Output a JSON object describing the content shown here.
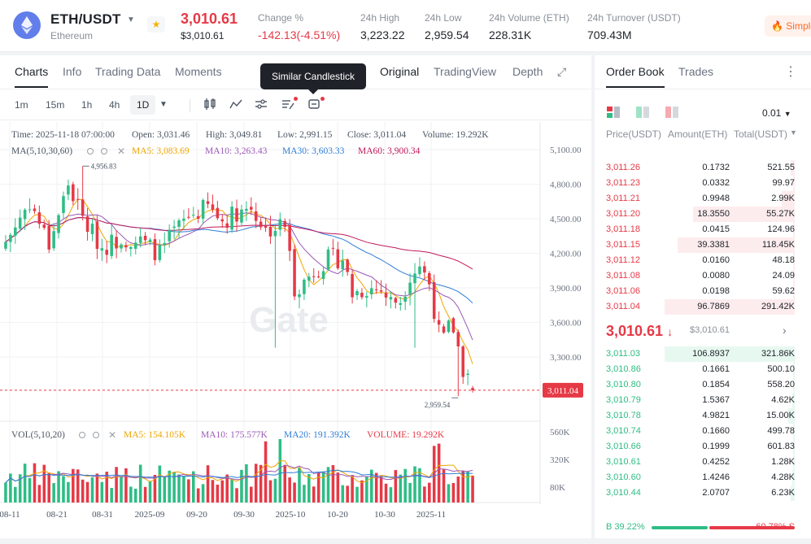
{
  "header": {
    "pair": "ETH/USDT",
    "pair_name": "Ethereum",
    "last_price": "3,010.61",
    "last_price_usd": "$3,010.61",
    "simple_label": "Simple",
    "stats": [
      {
        "label": "Change %",
        "value": "-142.13(-4.51%)",
        "negative": true
      },
      {
        "label": "24h High",
        "value": "3,223.22"
      },
      {
        "label": "24h Low",
        "value": "2,959.54"
      },
      {
        "label": "24h Volume (ETH)",
        "value": "228.31K"
      },
      {
        "label": "24h Turnover (USDT)",
        "value": "709.43M"
      }
    ]
  },
  "chart_tabs": {
    "left": [
      "Charts",
      "Info",
      "Trading Data",
      "Moments"
    ],
    "right": [
      "Original",
      "TradingView",
      "Depth"
    ],
    "tooltip": "Similar Candlestick"
  },
  "intervals": [
    "1m",
    "15m",
    "1h",
    "4h",
    "1D"
  ],
  "chart_info": {
    "time": "Time: 2025-11-18 07:00:00",
    "open": "Open: 3,031.46",
    "high": "High: 3,049.81",
    "low": "Low: 2,991.15",
    "close": "Close: 3,011.04",
    "volume": "Volume: 19.292K",
    "ma_label": "MA(5,10,30,60)",
    "ma5": "MA5: 3,083.69",
    "ma10": "MA10: 3,263.43",
    "ma30": "MA30: 3,603.33",
    "ma60": "MA60: 3,900.34",
    "vol_label": "VOL(5,10,20)",
    "vma5": "MA5: 154.105K",
    "vma10": "MA10: 175.577K",
    "vma20": "MA20: 191.392K",
    "vvol": "VOLUME: 19.292K",
    "watermark": "Gate"
  },
  "chart_data": {
    "type": "candlestick",
    "price_ticks": [
      "5,100.00",
      "4,800.00",
      "4,500.00",
      "4,200.00",
      "3,900.00",
      "3,600.00",
      "3,300.00"
    ],
    "price_range": [
      2800,
      5200
    ],
    "current_price_label": "3,011.04",
    "current_price": 3011.04,
    "max_label": "4,956.83",
    "max_value": 4956.83,
    "min_label": "2,959.54",
    "min_value": 2959.54,
    "volume_ticks": [
      "560K",
      "320K",
      "80K"
    ],
    "x_labels": [
      "08-11",
      "08-21",
      "08-31",
      "2025-09",
      "09-20",
      "09-30",
      "2025-10",
      "10-20",
      "10-30",
      "2025-11"
    ],
    "colors": {
      "up": "#2ebd85",
      "down": "#e63946",
      "ma5": "#f0a500",
      "ma10": "#9b59b6",
      "ma30": "#2f7ed8",
      "ma60": "#c2185b"
    }
  },
  "order_book": {
    "tabs": [
      "Order Book",
      "Trades"
    ],
    "precision": "0.01",
    "headers": [
      "Price(USDT)",
      "Amount(ETH)",
      "Total(USDT)"
    ],
    "asks": [
      {
        "price": "3,011.26",
        "amount": "0.1732",
        "total": "521.55",
        "depth": 0.03
      },
      {
        "price": "3,011.23",
        "amount": "0.0332",
        "total": "99.97",
        "depth": 0.01
      },
      {
        "price": "3,011.21",
        "amount": "0.9948",
        "total": "2.99K",
        "depth": 0.1
      },
      {
        "price": "3,011.20",
        "amount": "18.3550",
        "total": "55.27K",
        "depth": 0.78
      },
      {
        "price": "3,011.18",
        "amount": "0.0415",
        "total": "124.96",
        "depth": 0.01
      },
      {
        "price": "3,011.15",
        "amount": "39.3381",
        "total": "118.45K",
        "depth": 0.9
      },
      {
        "price": "3,011.12",
        "amount": "0.0160",
        "total": "48.18",
        "depth": 0.01
      },
      {
        "price": "3,011.08",
        "amount": "0.0080",
        "total": "24.09",
        "depth": 0.01
      },
      {
        "price": "3,011.06",
        "amount": "0.0198",
        "total": "59.62",
        "depth": 0.01
      },
      {
        "price": "3,011.04",
        "amount": "96.7869",
        "total": "291.42K",
        "depth": 1.0
      }
    ],
    "mid_price": "3,010.61",
    "mid_usd": "$3,010.61",
    "bids": [
      {
        "price": "3,011.03",
        "amount": "106.8937",
        "total": "321.86K",
        "depth": 1.0
      },
      {
        "price": "3,010.86",
        "amount": "0.1661",
        "total": "500.10",
        "depth": 0.01
      },
      {
        "price": "3,010.80",
        "amount": "0.1854",
        "total": "558.20",
        "depth": 0.01
      },
      {
        "price": "3,010.79",
        "amount": "1.5367",
        "total": "4.62K",
        "depth": 0.02
      },
      {
        "price": "3,010.78",
        "amount": "4.9821",
        "total": "15.00K",
        "depth": 0.05
      },
      {
        "price": "3,010.74",
        "amount": "0.1660",
        "total": "499.78",
        "depth": 0.01
      },
      {
        "price": "3,010.66",
        "amount": "0.1999",
        "total": "601.83",
        "depth": 0.01
      },
      {
        "price": "3,010.61",
        "amount": "0.4252",
        "total": "1.28K",
        "depth": 0.01
      },
      {
        "price": "3,010.60",
        "amount": "1.4246",
        "total": "4.28K",
        "depth": 0.02
      },
      {
        "price": "3,010.44",
        "amount": "2.0707",
        "total": "6.23K",
        "depth": 0.03
      }
    ],
    "buy_ratio": "B 39.22%",
    "sell_ratio": "60.78% S",
    "buy_fraction": 0.3922
  }
}
